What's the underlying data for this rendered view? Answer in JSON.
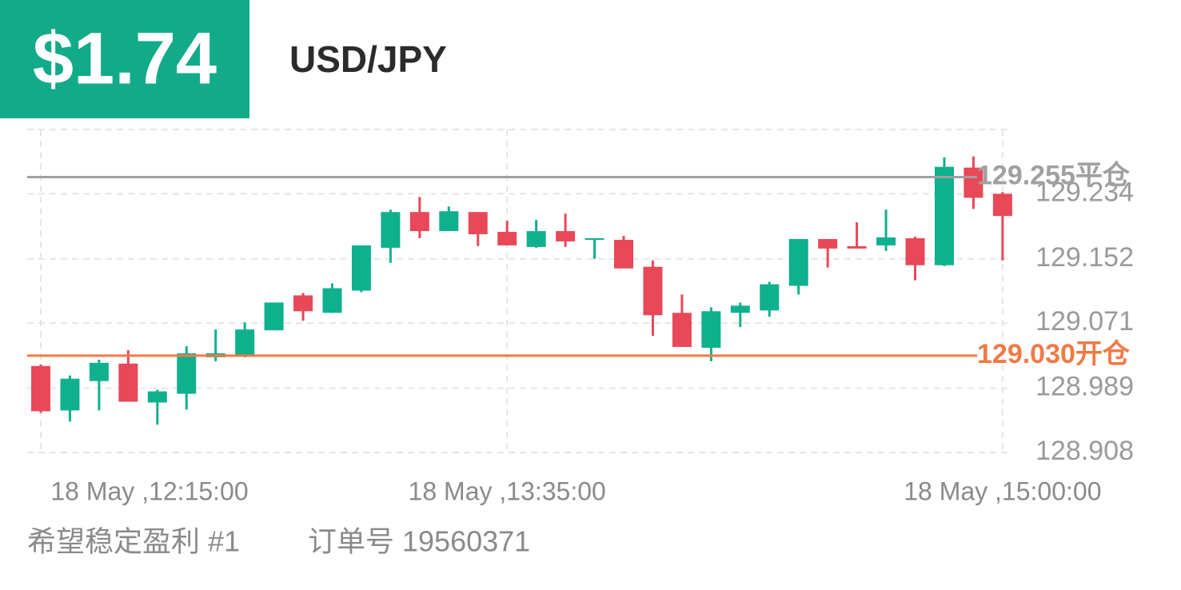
{
  "header": {
    "profit": "$1.74",
    "symbol": "USD/JPY"
  },
  "footer": {
    "strategy": "希望稳定盈利 #1",
    "order": "订单号 19560371"
  },
  "chart_data": {
    "type": "candlestick",
    "categories": [
      "18 May ,12:15:00",
      null,
      null,
      null,
      null,
      null,
      null,
      null,
      null,
      null,
      null,
      null,
      null,
      null,
      null,
      null,
      "18 May ,13:35:00",
      null,
      null,
      null,
      null,
      null,
      null,
      null,
      null,
      null,
      null,
      null,
      null,
      null,
      null,
      null,
      null,
      "18 May ,15:00:00"
    ],
    "open": [
      129.017,
      128.961,
      128.998,
      129.02,
      128.971,
      128.982,
      129.028,
      129.031,
      129.062,
      129.106,
      129.084,
      129.112,
      129.166,
      129.211,
      129.187,
      129.211,
      129.186,
      129.167,
      129.187,
      129.176,
      129.176,
      129.142,
      129.084,
      129.04,
      129.084,
      129.087,
      129.118,
      129.177,
      129.168,
      129.169,
      129.178,
      129.144,
      129.267,
      129.234
    ],
    "high": [
      129.019,
      129.005,
      129.025,
      129.037,
      128.987,
      129.042,
      129.063,
      129.072,
      129.097,
      129.109,
      129.121,
      129.169,
      129.214,
      129.23,
      129.218,
      129.211,
      129.2,
      129.201,
      129.209,
      129.178,
      129.181,
      129.15,
      129.107,
      129.091,
      129.097,
      129.123,
      129.177,
      129.177,
      129.198,
      129.214,
      129.18,
      129.28,
      129.281,
      129.236
    ],
    "low": [
      128.958,
      128.947,
      128.961,
      128.972,
      128.943,
      128.962,
      129.023,
      129.028,
      129.062,
      129.074,
      129.084,
      129.11,
      129.147,
      129.178,
      129.187,
      129.168,
      129.169,
      129.166,
      129.167,
      129.152,
      129.14,
      129.055,
      129.041,
      129.023,
      129.066,
      129.079,
      129.107,
      129.141,
      129.165,
      129.162,
      129.125,
      129.143,
      129.215,
      129.15
    ],
    "close": [
      128.96,
      129.001,
      129.021,
      128.972,
      128.985,
      129.033,
      129.033,
      129.063,
      129.097,
      129.086,
      129.115,
      129.169,
      129.211,
      129.187,
      129.212,
      129.183,
      129.169,
      129.187,
      129.174,
      129.178,
      129.14,
      129.081,
      129.041,
      129.086,
      129.093,
      129.12,
      129.177,
      129.165,
      129.165,
      129.179,
      129.144,
      129.268,
      129.229,
      129.206
    ],
    "up_color": "#0fb08e",
    "down_color": "#e84857",
    "ylim": [
      128.908,
      129.315
    ],
    "yticks": [
      128.908,
      128.989,
      129.071,
      129.152,
      129.234
    ],
    "grid": true,
    "close_line": {
      "value": 129.255,
      "label": "129.255平仓",
      "color": "#a0a0a0"
    },
    "open_line": {
      "value": 129.03,
      "label": "129.030开仓",
      "color": "#f07a45"
    }
  }
}
